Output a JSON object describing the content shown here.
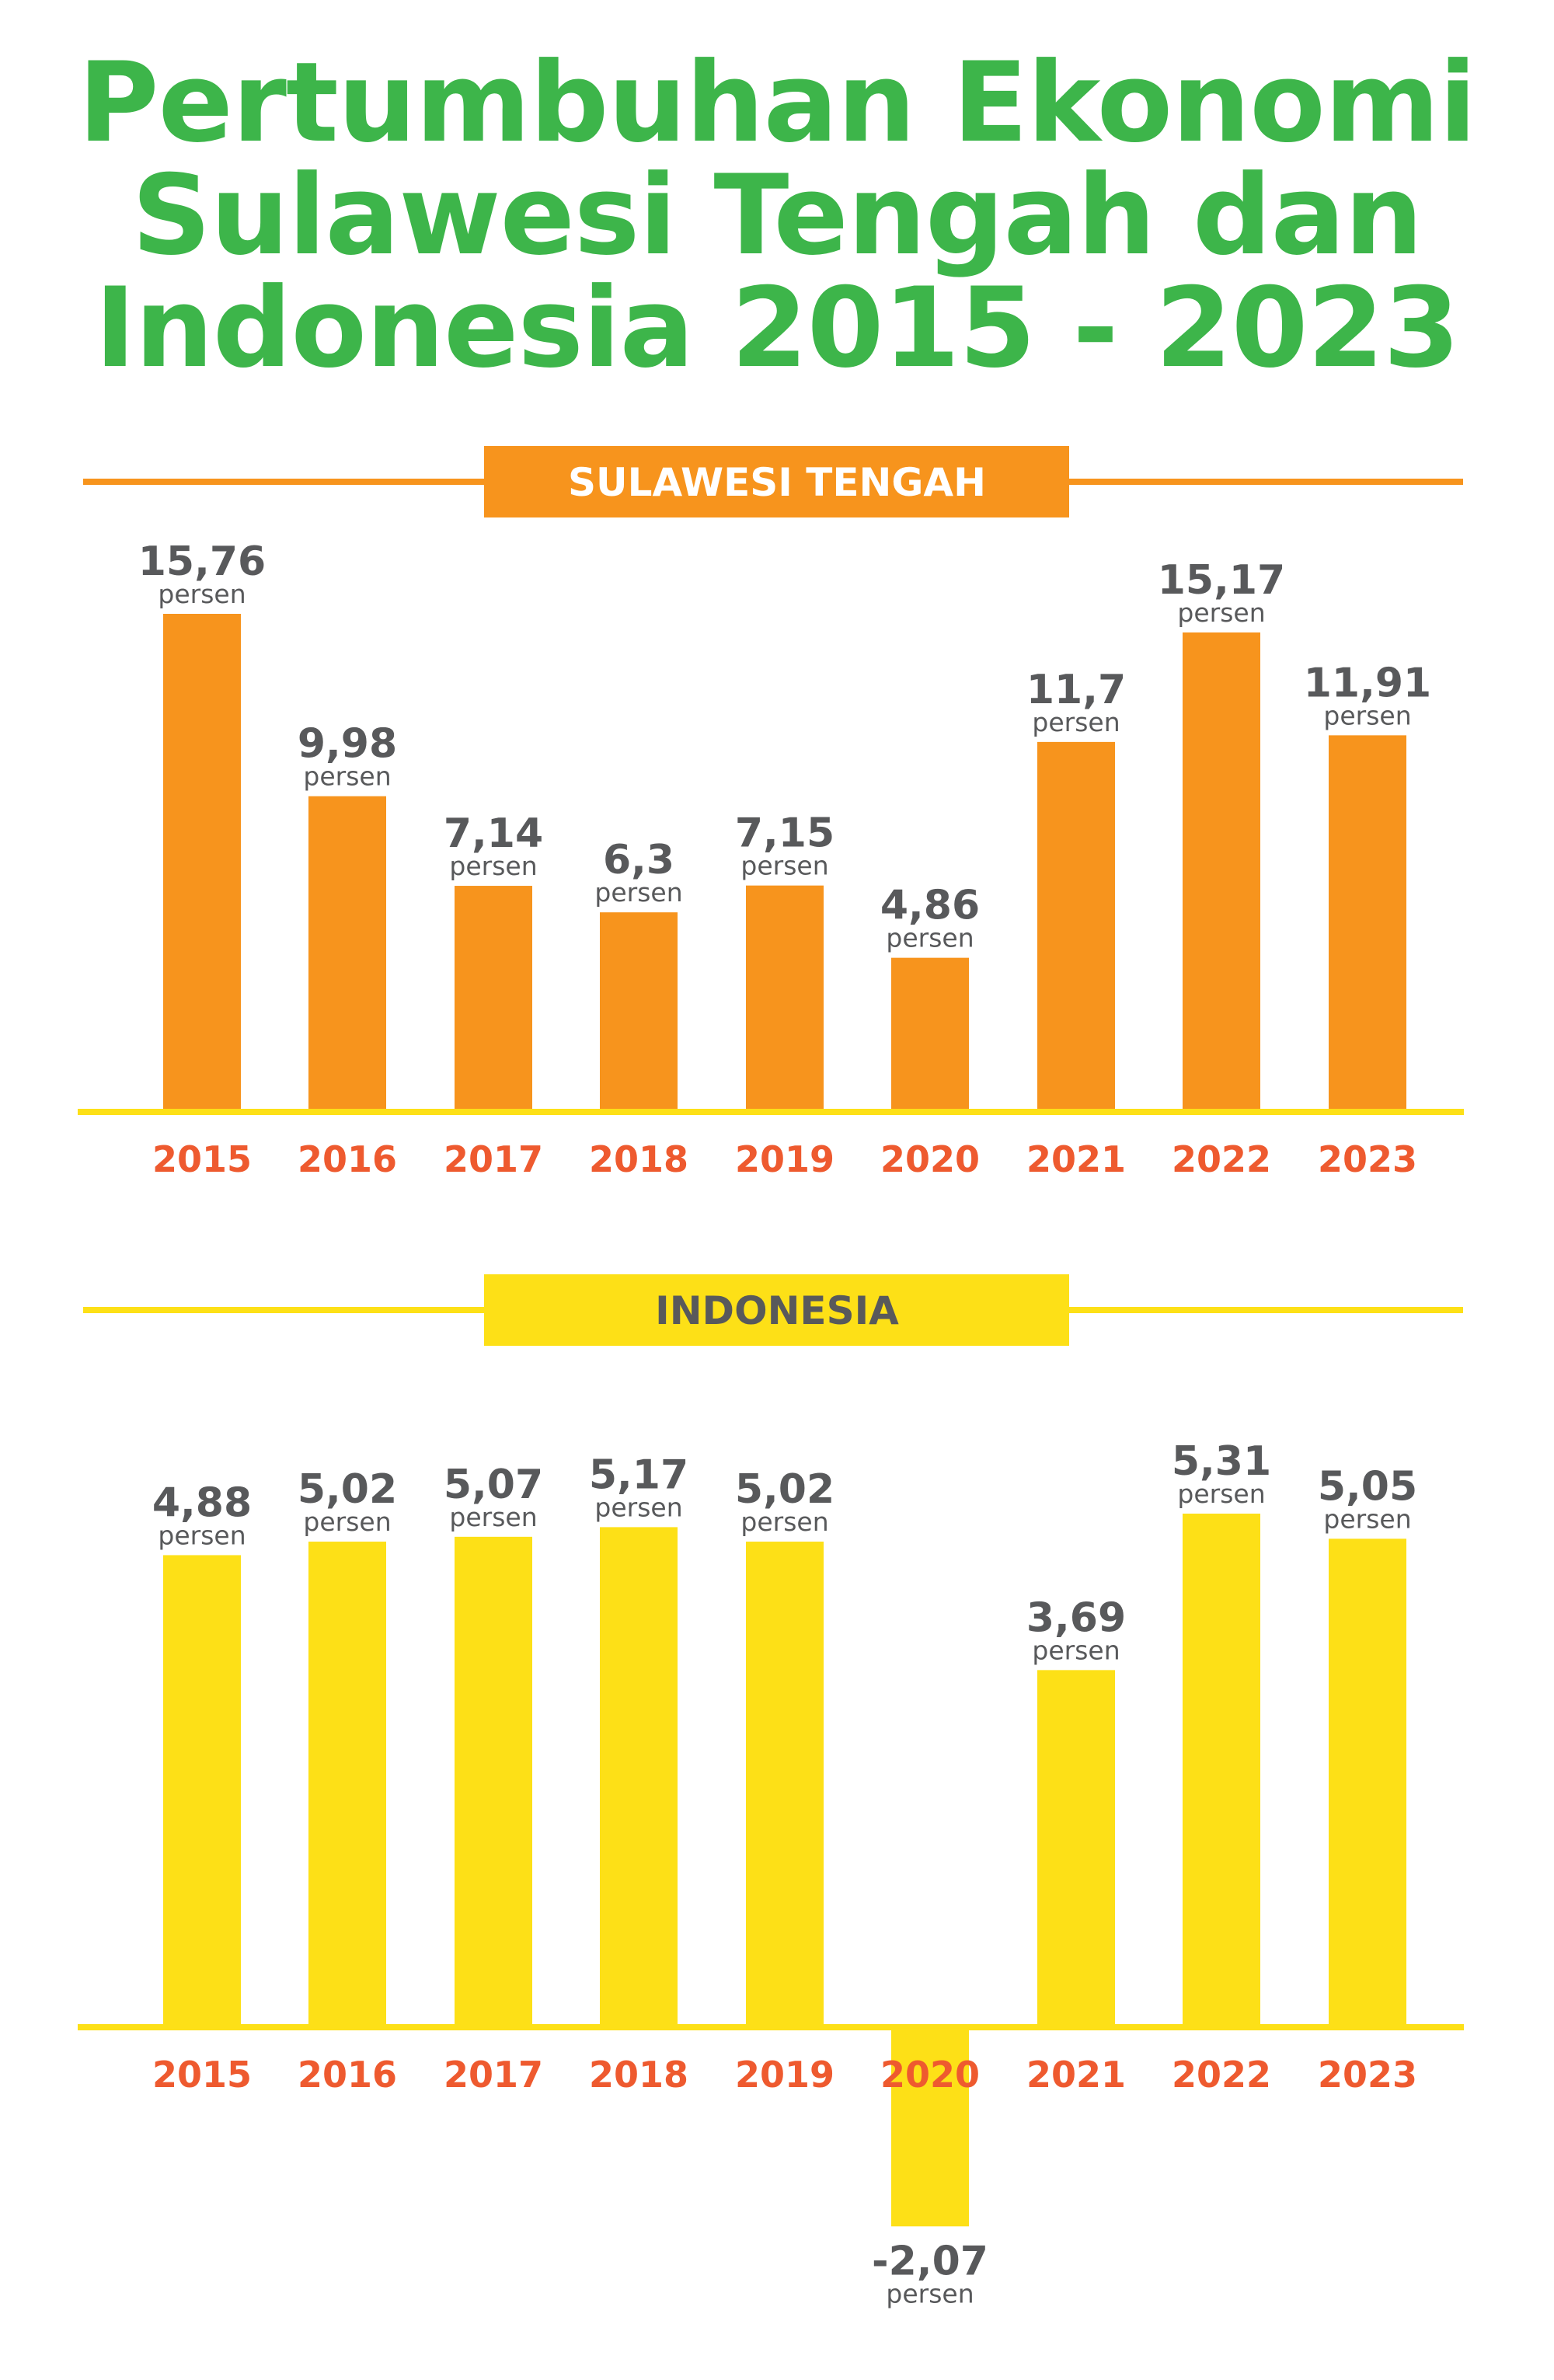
{
  "title": {
    "line1": "Pertumbuhan Ekonomi",
    "line2": "Sulawesi Tengah dan",
    "line3": "Indonesia 2015 - 2023"
  },
  "unit_label": "persen",
  "colors": {
    "title": "#3db54a",
    "sulteng_bar": "#f7941d",
    "indonesia_bar": "#fde017",
    "value_text": "#58595b",
    "year_text": "#ee5a2f",
    "indonesia_header_text": "#58595b",
    "sulteng_header_text": "#ffffff"
  },
  "chart_data": [
    {
      "type": "bar",
      "title": "SULAWESI TENGAH",
      "categories": [
        "2015",
        "2016",
        "2017",
        "2018",
        "2019",
        "2020",
        "2021",
        "2022",
        "2023"
      ],
      "values": [
        15.76,
        9.98,
        7.14,
        6.3,
        7.15,
        4.86,
        11.7,
        15.17,
        11.91
      ],
      "value_labels": [
        "15,76",
        "9,98",
        "7,14",
        "6,3",
        "7,15",
        "4,86",
        "11,7",
        "15,17",
        "11,91"
      ],
      "xlabel": "",
      "ylabel": "",
      "ylim": [
        0,
        15.76
      ],
      "grid": false
    },
    {
      "type": "bar",
      "title": "INDONESIA",
      "categories": [
        "2015",
        "2016",
        "2017",
        "2018",
        "2019",
        "2020",
        "2021",
        "2022",
        "2023"
      ],
      "values": [
        4.88,
        5.02,
        5.07,
        5.17,
        5.02,
        -2.07,
        3.69,
        5.31,
        5.05
      ],
      "value_labels": [
        "4,88",
        "5,02",
        "5,07",
        "5,17",
        "5,02",
        "-2,07",
        "3,69",
        "5,31",
        "5,05"
      ],
      "xlabel": "",
      "ylabel": "",
      "ylim": [
        -2.07,
        5.31
      ],
      "grid": false
    }
  ]
}
